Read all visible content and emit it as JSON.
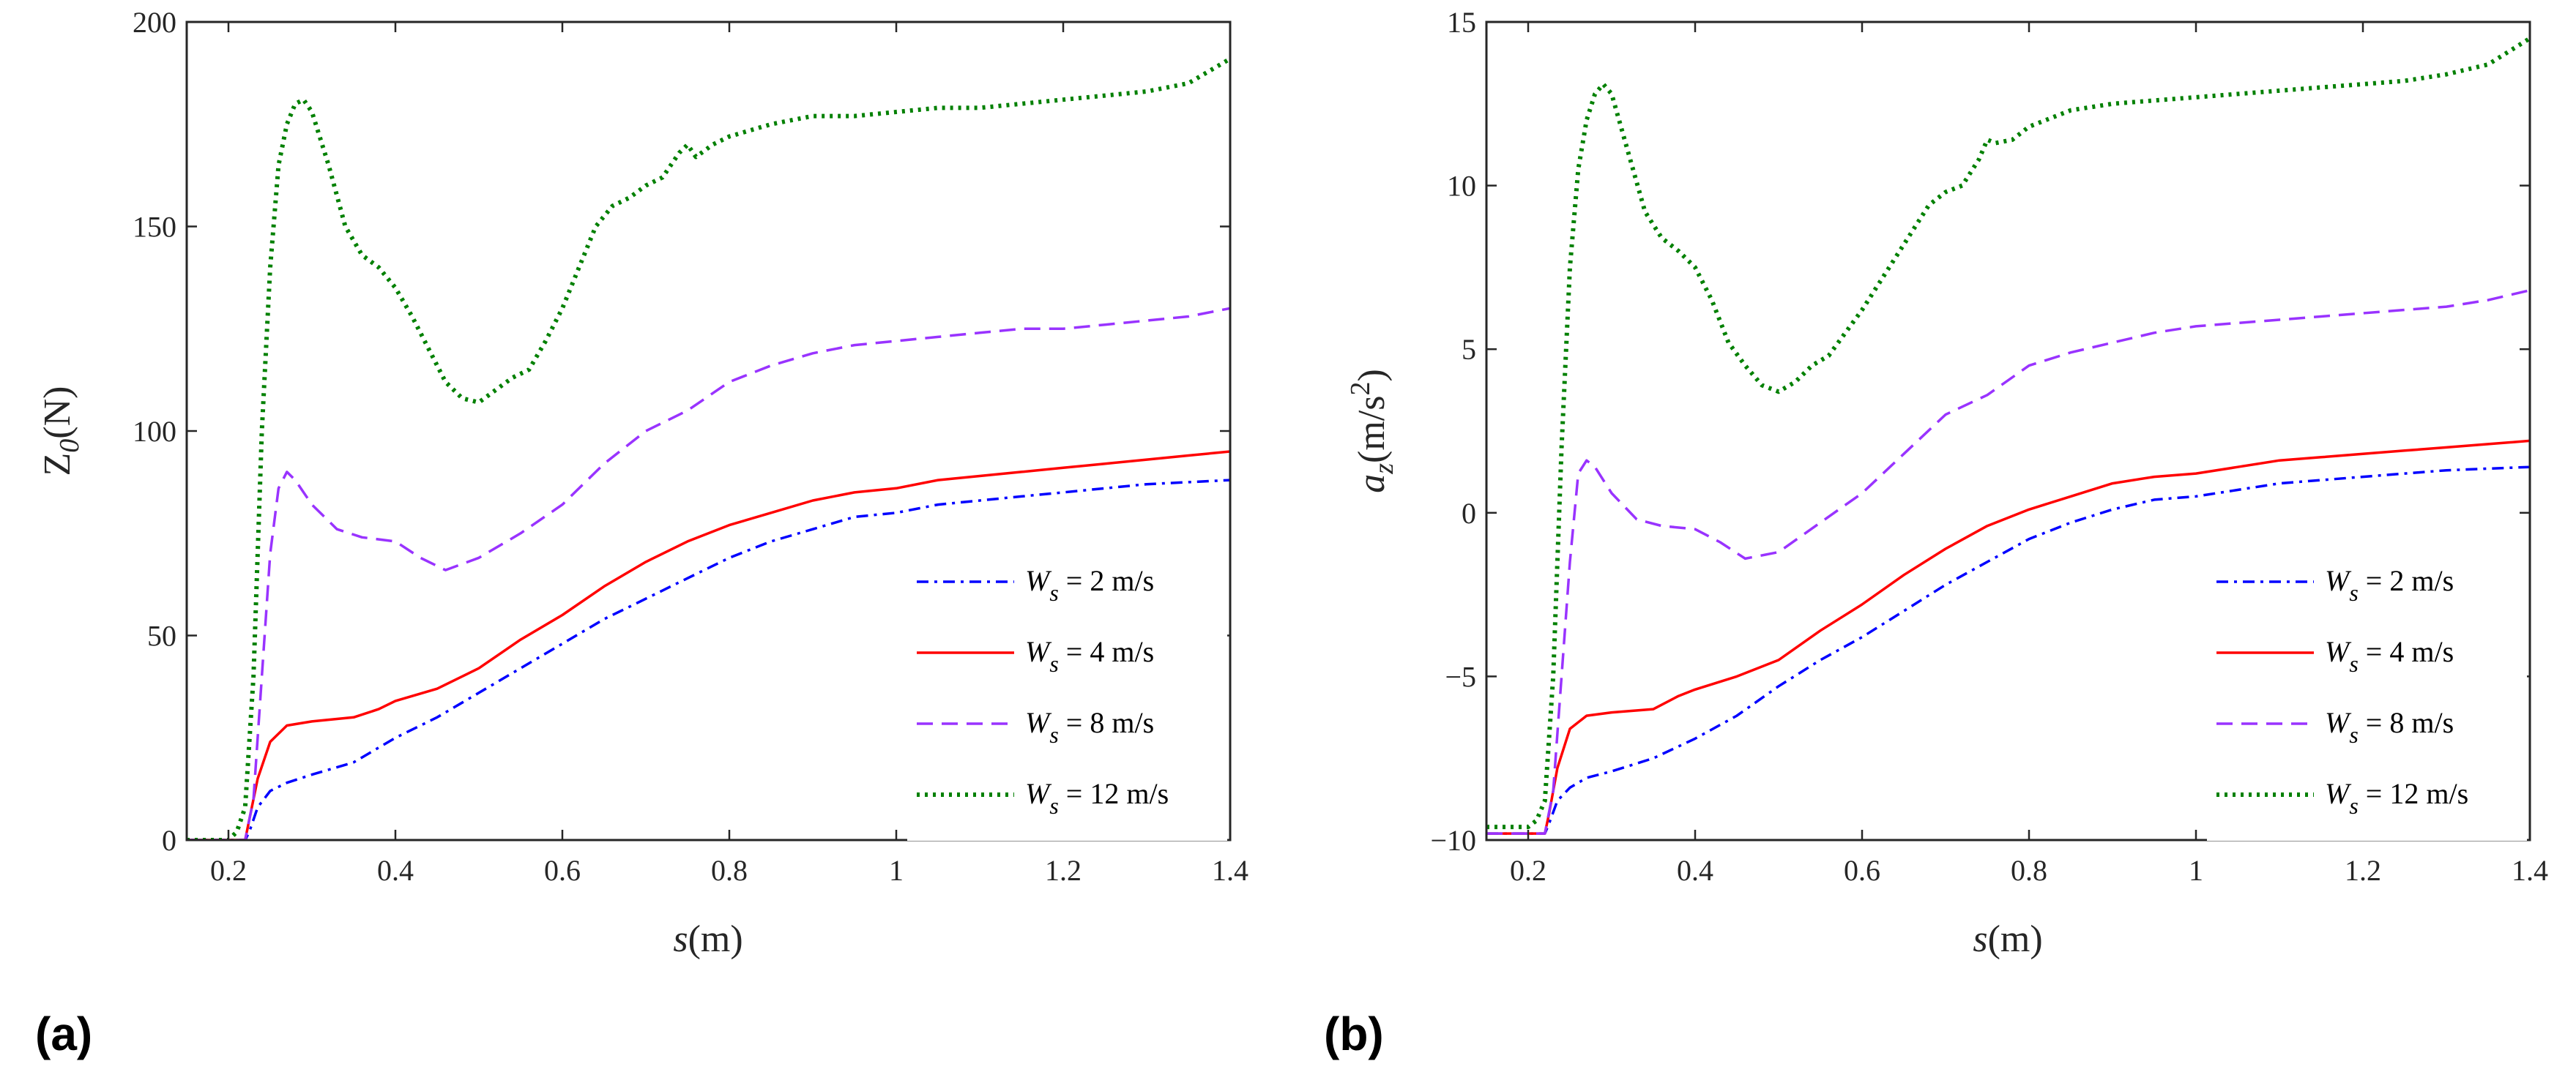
{
  "chart_data": [
    {
      "type": "line",
      "panel_label": "(a)",
      "xlabel": {
        "italic": "s",
        "rest": "(m)"
      },
      "ylabel": {
        "main": "Z",
        "sub": "0",
        "rest": "(N)"
      },
      "xlim": [
        0.15,
        1.4
      ],
      "ylim": [
        0,
        200
      ],
      "xticks": [
        0.2,
        0.4,
        0.6,
        0.8,
        1,
        1.2,
        1.4
      ],
      "xtick_labels": [
        "0.2",
        "0.4",
        "0.6",
        "0.8",
        "1",
        "1.2",
        "1.4"
      ],
      "yticks": [
        0,
        50,
        100,
        150,
        200
      ],
      "ytick_labels": [
        "0",
        "50",
        "100",
        "150",
        "200"
      ],
      "legend_location": "bottom-right",
      "series": [
        {
          "name": "Ws = 2 m/s",
          "legend": {
            "main": "W",
            "sub": "s",
            "rest": " = 2 m/s"
          },
          "color": "#0000ff",
          "dash": "dashdot",
          "x": [
            0.15,
            0.22,
            0.225,
            0.235,
            0.25,
            0.27,
            0.3,
            0.35,
            0.4,
            0.45,
            0.5,
            0.55,
            0.6,
            0.65,
            0.7,
            0.75,
            0.8,
            0.85,
            0.9,
            0.95,
            1.0,
            1.05,
            1.1,
            1.15,
            1.2,
            1.25,
            1.3,
            1.35,
            1.4
          ],
          "y": [
            0,
            0,
            2,
            8,
            12,
            14,
            16,
            19,
            25,
            30,
            36,
            42,
            48,
            54,
            59,
            64,
            69,
            73,
            76,
            79,
            80,
            82,
            83,
            84,
            85,
            86,
            87,
            87.5,
            88
          ]
        },
        {
          "name": "Ws = 4 m/s",
          "legend": {
            "main": "W",
            "sub": "s",
            "rest": " = 4 m/s"
          },
          "color": "#ff0000",
          "dash": "solid",
          "x": [
            0.15,
            0.22,
            0.225,
            0.235,
            0.25,
            0.27,
            0.3,
            0.35,
            0.38,
            0.4,
            0.45,
            0.5,
            0.55,
            0.6,
            0.65,
            0.7,
            0.75,
            0.8,
            0.85,
            0.9,
            0.95,
            1.0,
            1.05,
            1.1,
            1.15,
            1.2,
            1.25,
            1.3,
            1.35,
            1.4
          ],
          "y": [
            0,
            0,
            5,
            15,
            24,
            28,
            29,
            30,
            32,
            34,
            37,
            42,
            49,
            55,
            62,
            68,
            73,
            77,
            80,
            83,
            85,
            86,
            88,
            89,
            90,
            91,
            92,
            93,
            94,
            95
          ]
        },
        {
          "name": "Ws = 8 m/s",
          "legend": {
            "main": "W",
            "sub": "s",
            "rest": " = 8 m/s"
          },
          "color": "#9933ff",
          "dash": "dashed",
          "x": [
            0.15,
            0.22,
            0.23,
            0.24,
            0.25,
            0.26,
            0.27,
            0.28,
            0.3,
            0.33,
            0.36,
            0.4,
            0.43,
            0.46,
            0.5,
            0.55,
            0.6,
            0.65,
            0.7,
            0.75,
            0.8,
            0.85,
            0.9,
            0.95,
            1.0,
            1.05,
            1.1,
            1.15,
            1.2,
            1.25,
            1.3,
            1.35,
            1.4
          ],
          "y": [
            0,
            0,
            10,
            40,
            70,
            86,
            90,
            88,
            82,
            76,
            74,
            73,
            69,
            66,
            69,
            75,
            82,
            92,
            100,
            105,
            112,
            116,
            119,
            121,
            122,
            123,
            124,
            125,
            125,
            126,
            127,
            128,
            130
          ]
        },
        {
          "name": "Ws = 12 m/s",
          "legend": {
            "main": "W",
            "sub": "s",
            "rest": " = 12 m/s"
          },
          "color": "#008000",
          "dash": "dotted",
          "x": [
            0.15,
            0.2,
            0.21,
            0.22,
            0.23,
            0.24,
            0.25,
            0.26,
            0.27,
            0.28,
            0.29,
            0.3,
            0.32,
            0.34,
            0.36,
            0.38,
            0.4,
            0.42,
            0.44,
            0.46,
            0.48,
            0.5,
            0.52,
            0.54,
            0.56,
            0.58,
            0.6,
            0.62,
            0.64,
            0.66,
            0.68,
            0.7,
            0.72,
            0.74,
            0.75,
            0.76,
            0.78,
            0.8,
            0.85,
            0.9,
            0.95,
            1.0,
            1.05,
            1.1,
            1.15,
            1.2,
            1.25,
            1.3,
            1.35,
            1.4
          ],
          "y": [
            0,
            0,
            2,
            8,
            40,
            100,
            140,
            165,
            175,
            180,
            181,
            178,
            165,
            150,
            143,
            140,
            135,
            128,
            120,
            112,
            108,
            107,
            110,
            113,
            115,
            122,
            130,
            140,
            150,
            155,
            157,
            160,
            162,
            168,
            170,
            167,
            170,
            172,
            175,
            177,
            177,
            178,
            179,
            179,
            180,
            181,
            182,
            183,
            185,
            191
          ]
        }
      ]
    },
    {
      "type": "line",
      "panel_label": "(b)",
      "xlabel": {
        "italic": "s",
        "rest": "(m)"
      },
      "ylabel": {
        "main": "a",
        "sub": "z",
        "rest": "(m/s",
        "sup": "2",
        "rest2": ")"
      },
      "xlim": [
        0.15,
        1.4
      ],
      "ylim": [
        -10,
        15
      ],
      "xticks": [
        0.2,
        0.4,
        0.6,
        0.8,
        1,
        1.2,
        1.4
      ],
      "xtick_labels": [
        "0.2",
        "0.4",
        "0.6",
        "0.8",
        "1",
        "1.2",
        "1.4"
      ],
      "yticks": [
        -10,
        -5,
        0,
        5,
        10,
        15
      ],
      "ytick_labels": [
        "−10",
        "−5",
        "0",
        "5",
        "10",
        "15"
      ],
      "legend_location": "bottom-right",
      "series": [
        {
          "name": "Ws = 2 m/s",
          "legend": {
            "main": "W",
            "sub": "s",
            "rest": " = 2 m/s"
          },
          "color": "#0000ff",
          "dash": "dashdot",
          "x": [
            0.15,
            0.22,
            0.225,
            0.235,
            0.25,
            0.27,
            0.3,
            0.35,
            0.4,
            0.45,
            0.5,
            0.55,
            0.6,
            0.65,
            0.7,
            0.75,
            0.8,
            0.85,
            0.9,
            0.95,
            1.0,
            1.05,
            1.1,
            1.15,
            1.2,
            1.25,
            1.3,
            1.35,
            1.4
          ],
          "y": [
            -9.8,
            -9.8,
            -9.5,
            -8.8,
            -8.4,
            -8.1,
            -7.9,
            -7.5,
            -6.9,
            -6.2,
            -5.3,
            -4.5,
            -3.8,
            -3.0,
            -2.2,
            -1.5,
            -0.8,
            -0.3,
            0.1,
            0.4,
            0.5,
            0.7,
            0.9,
            1.0,
            1.1,
            1.2,
            1.3,
            1.35,
            1.4
          ]
        },
        {
          "name": "Ws = 4 m/s",
          "legend": {
            "main": "W",
            "sub": "s",
            "rest": " = 4 m/s"
          },
          "color": "#ff0000",
          "dash": "solid",
          "x": [
            0.15,
            0.22,
            0.225,
            0.235,
            0.25,
            0.27,
            0.3,
            0.35,
            0.38,
            0.4,
            0.45,
            0.5,
            0.55,
            0.6,
            0.65,
            0.7,
            0.75,
            0.8,
            0.85,
            0.9,
            0.95,
            1.0,
            1.05,
            1.1,
            1.15,
            1.2,
            1.25,
            1.3,
            1.35,
            1.4
          ],
          "y": [
            -9.8,
            -9.8,
            -9.2,
            -7.8,
            -6.6,
            -6.2,
            -6.1,
            -6.0,
            -5.6,
            -5.4,
            -5.0,
            -4.5,
            -3.6,
            -2.8,
            -1.9,
            -1.1,
            -0.4,
            0.1,
            0.5,
            0.9,
            1.1,
            1.2,
            1.4,
            1.6,
            1.7,
            1.8,
            1.9,
            2.0,
            2.1,
            2.2
          ]
        },
        {
          "name": "Ws = 8 m/s",
          "legend": {
            "main": "W",
            "sub": "s",
            "rest": " = 8 m/s"
          },
          "color": "#9933ff",
          "dash": "dashed",
          "x": [
            0.15,
            0.22,
            0.23,
            0.24,
            0.25,
            0.26,
            0.27,
            0.28,
            0.3,
            0.33,
            0.36,
            0.4,
            0.43,
            0.46,
            0.5,
            0.55,
            0.6,
            0.65,
            0.7,
            0.75,
            0.8,
            0.85,
            0.9,
            0.95,
            1.0,
            1.05,
            1.1,
            1.15,
            1.2,
            1.25,
            1.3,
            1.35,
            1.4
          ],
          "y": [
            -9.8,
            -9.8,
            -8.5,
            -5.0,
            -1.5,
            1.2,
            1.6,
            1.4,
            0.6,
            -0.2,
            -0.4,
            -0.5,
            -0.9,
            -1.4,
            -1.2,
            -0.3,
            0.6,
            1.8,
            3.0,
            3.6,
            4.5,
            4.9,
            5.2,
            5.5,
            5.7,
            5.8,
            5.9,
            6.0,
            6.1,
            6.2,
            6.3,
            6.5,
            6.8
          ]
        },
        {
          "name": "Ws = 12 m/s",
          "legend": {
            "main": "W",
            "sub": "s",
            "rest": " = 12 m/s"
          },
          "color": "#008000",
          "dash": "dotted",
          "x": [
            0.15,
            0.2,
            0.21,
            0.22,
            0.23,
            0.24,
            0.25,
            0.26,
            0.27,
            0.28,
            0.29,
            0.3,
            0.32,
            0.34,
            0.36,
            0.38,
            0.4,
            0.42,
            0.44,
            0.46,
            0.48,
            0.5,
            0.52,
            0.54,
            0.56,
            0.58,
            0.6,
            0.62,
            0.64,
            0.66,
            0.68,
            0.7,
            0.72,
            0.74,
            0.75,
            0.76,
            0.78,
            0.8,
            0.85,
            0.9,
            0.95,
            1.0,
            1.05,
            1.1,
            1.15,
            1.2,
            1.25,
            1.3,
            1.35,
            1.4
          ],
          "y": [
            -9.6,
            -9.6,
            -9.4,
            -8.8,
            -5.0,
            2.0,
            7.5,
            10.5,
            12.0,
            12.8,
            13.1,
            12.8,
            11.0,
            9.2,
            8.4,
            8.0,
            7.5,
            6.5,
            5.2,
            4.5,
            3.9,
            3.7,
            4.0,
            4.5,
            4.8,
            5.5,
            6.2,
            7.0,
            7.8,
            8.6,
            9.4,
            9.8,
            10.0,
            10.8,
            11.4,
            11.3,
            11.4,
            11.8,
            12.3,
            12.5,
            12.6,
            12.7,
            12.8,
            12.9,
            13.0,
            13.1,
            13.2,
            13.4,
            13.7,
            14.5
          ]
        }
      ]
    }
  ]
}
